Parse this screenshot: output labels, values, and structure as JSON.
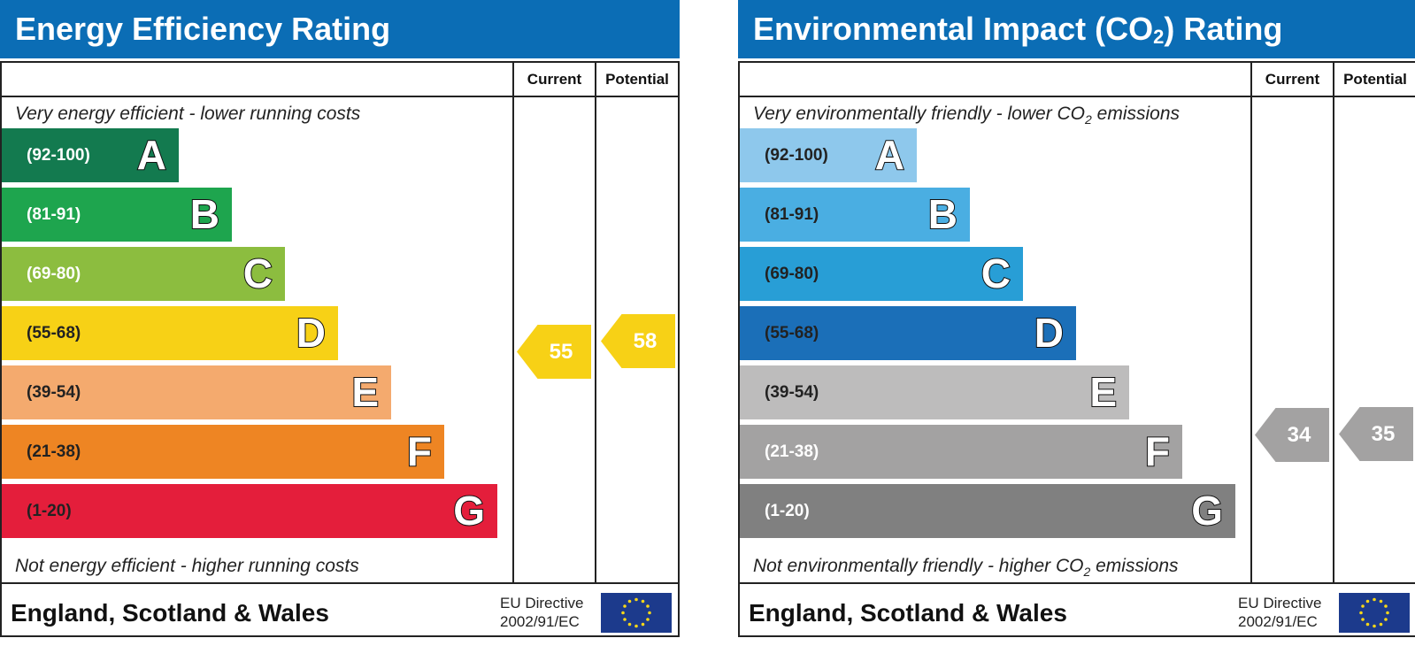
{
  "columns": {
    "current": "Current",
    "potential": "Potential"
  },
  "energy": {
    "title": "Energy Efficiency Rating",
    "top_text": "Very energy efficient - lower running costs",
    "bottom_text": "Not energy efficient - higher running costs",
    "bands": [
      {
        "range": "(92-100)",
        "letter": "A",
        "color": "#137a4f",
        "range_color": "#ffffff"
      },
      {
        "range": "(81-91)",
        "letter": "B",
        "color": "#1ea54e",
        "range_color": "#ffffff"
      },
      {
        "range": "(69-80)",
        "letter": "C",
        "color": "#8cbd3f",
        "range_color": "#ffffff"
      },
      {
        "range": "(55-68)",
        "letter": "D",
        "color": "#f7d116",
        "range_color": "#222222"
      },
      {
        "range": "(39-54)",
        "letter": "E",
        "color": "#f4aa6e",
        "range_color": "#222222"
      },
      {
        "range": "(21-38)",
        "letter": "F",
        "color": "#ee8523",
        "range_color": "#222222"
      },
      {
        "range": "(1-20)",
        "letter": "G",
        "color": "#e41e3b",
        "range_color": "#222222"
      }
    ],
    "current": {
      "value": "55",
      "band": "D",
      "color": "#f7d116"
    },
    "potential": {
      "value": "58",
      "band": "D",
      "color": "#f7d116"
    }
  },
  "environmental": {
    "title_main": "Environmental Impact (CO",
    "title_sub": "2",
    "title_end": ") Rating",
    "top_text_main": "Very environmentally friendly - lower CO",
    "top_text_sub": "2",
    "top_text_end": " emissions",
    "bottom_text_main": "Not environmentally friendly - higher CO",
    "bottom_text_sub": "2",
    "bottom_text_end": " emissions",
    "bands": [
      {
        "range": "(92-100)",
        "letter": "A",
        "color": "#8ec8ec",
        "range_color": "#222222"
      },
      {
        "range": "(81-91)",
        "letter": "B",
        "color": "#4aaee2",
        "range_color": "#222222"
      },
      {
        "range": "(69-80)",
        "letter": "C",
        "color": "#289ed6",
        "range_color": "#222222"
      },
      {
        "range": "(55-68)",
        "letter": "D",
        "color": "#1b6fb8",
        "range_color": "#222222"
      },
      {
        "range": "(39-54)",
        "letter": "E",
        "color": "#bdbcbc",
        "range_color": "#222222"
      },
      {
        "range": "(21-38)",
        "letter": "F",
        "color": "#a3a2a2",
        "range_color": "#ffffff"
      },
      {
        "range": "(1-20)",
        "letter": "G",
        "color": "#808080",
        "range_color": "#ffffff"
      }
    ],
    "current": {
      "value": "34",
      "band": "F",
      "color": "#a3a2a2"
    },
    "potential": {
      "value": "35",
      "band": "F",
      "color": "#a3a2a2"
    }
  },
  "footer": {
    "region": "England, Scotland & Wales",
    "eu_line1": "EU Directive",
    "eu_line2": "2002/91/EC"
  },
  "header_color": "#0b6db5",
  "flag_color": "#1c3a8c",
  "star_color": "#f8d717"
}
